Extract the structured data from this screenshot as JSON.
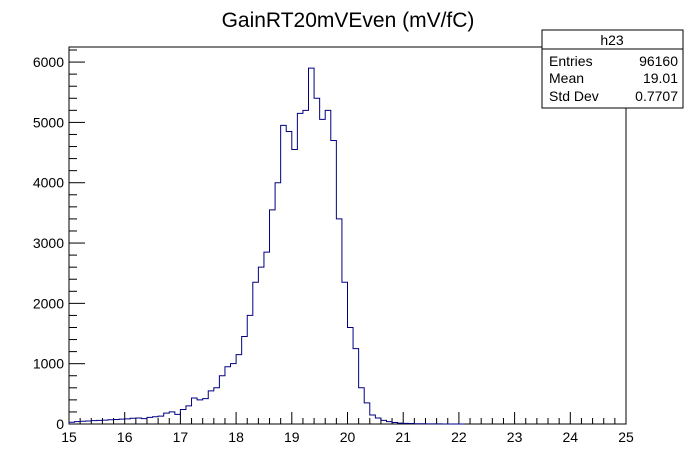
{
  "chart_data": {
    "type": "bar",
    "title": "GainRT20mVEven (mV/fC)",
    "xlim": [
      15,
      25
    ],
    "ylim": [
      0,
      6250
    ],
    "bin_width": 0.1,
    "x_ticks": [
      15,
      16,
      17,
      18,
      19,
      20,
      21,
      22,
      23,
      24,
      25
    ],
    "y_ticks": [
      0,
      1000,
      2000,
      3000,
      4000,
      5000,
      6000
    ],
    "grid": false,
    "line_color": "#000080",
    "bin_low_edges": [
      15.0,
      15.1,
      15.2,
      15.3,
      15.4,
      15.5,
      15.6,
      15.7,
      15.8,
      15.9,
      16.0,
      16.1,
      16.2,
      16.3,
      16.4,
      16.5,
      16.6,
      16.7,
      16.8,
      16.9,
      17.0,
      17.1,
      17.2,
      17.3,
      17.4,
      17.5,
      17.6,
      17.7,
      17.8,
      17.9,
      18.0,
      18.1,
      18.2,
      18.3,
      18.4,
      18.5,
      18.6,
      18.7,
      18.8,
      18.9,
      19.0,
      19.1,
      19.2,
      19.3,
      19.4,
      19.5,
      19.6,
      19.7,
      19.8,
      19.9,
      20.0,
      20.1,
      20.2,
      20.3,
      20.4,
      20.5,
      20.6,
      20.7,
      20.8,
      20.9,
      21.0,
      21.1,
      21.2,
      21.3,
      21.4,
      21.5,
      21.6,
      21.7,
      21.8,
      21.9,
      22.0
    ],
    "values": [
      30,
      40,
      45,
      50,
      55,
      60,
      65,
      70,
      75,
      80,
      85,
      95,
      100,
      90,
      110,
      120,
      130,
      180,
      200,
      160,
      240,
      300,
      430,
      400,
      420,
      550,
      600,
      800,
      950,
      1000,
      1150,
      1450,
      1800,
      2350,
      2600,
      2850,
      3550,
      4000,
      4950,
      4850,
      4550,
      5150,
      5200,
      5900,
      5400,
      5050,
      5200,
      4700,
      3400,
      2350,
      1600,
      1250,
      600,
      350,
      150,
      100,
      60,
      40,
      25,
      15,
      10,
      8,
      5,
      4,
      3,
      2,
      2,
      1,
      1,
      1,
      0
    ]
  },
  "stats_box": {
    "name": "h23",
    "rows": [
      {
        "label": "Entries",
        "value": "96160"
      },
      {
        "label": "Mean",
        "value": "19.01"
      },
      {
        "label": "Std Dev",
        "value": "0.7707"
      }
    ]
  }
}
